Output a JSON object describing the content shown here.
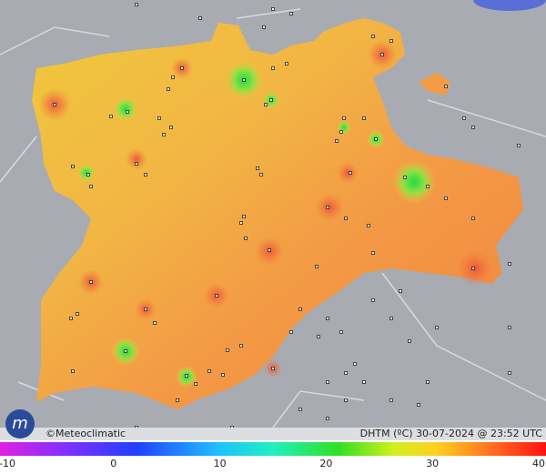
{
  "footer": {
    "credit": "©Meteoclimatic",
    "caption": "DHTM (ºC)  30-07-2024 @ 23:52 UTC"
  },
  "legend": {
    "ticks": [
      -10,
      0,
      10,
      20,
      30,
      40
    ]
  }
}
